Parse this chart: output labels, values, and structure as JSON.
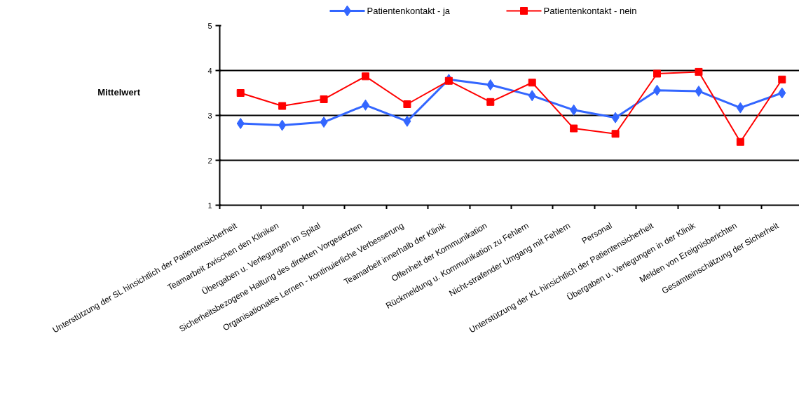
{
  "chart_data": {
    "type": "line",
    "ylabel": "Mittelwert",
    "categories": [
      "Unterstützung der SL hinsichtlich der Patientensicherheit",
      "Teamarbeit zwischen den Kliniken",
      "Übergaben u. Verlegungen im Spital",
      "Sicherheitsbezogene Haltung des direkten Vorgesetzten",
      "Organisationales Lernen - kontinuierliche Verbesserung",
      "Teamarbeit innerhalb der Klinik",
      "Offenheit der Kommunikation",
      "Rückmeldung u. Kommunikation zu Fehlern",
      "Nicht-strafender Umgang mit Fehlern",
      "Personal",
      "Unterstützung der KL hinsichtlich der Patientensicherheit",
      "Übergaben u. Verlegungen in der Klinik",
      "Melden von Ereignisberichten",
      "Gesamteinschätzung der Sicherheit"
    ],
    "series": [
      {
        "name": "Patientenkontakt - ja",
        "color": "#3366ff",
        "marker": "diamond",
        "values": [
          2.82,
          2.78,
          2.85,
          3.23,
          2.87,
          3.8,
          3.68,
          3.44,
          3.12,
          2.95,
          3.56,
          3.54,
          3.17,
          3.5
        ]
      },
      {
        "name": "Patientenkontakt - nein",
        "color": "#ff0000",
        "marker": "square",
        "values": [
          3.5,
          3.21,
          3.36,
          3.87,
          3.25,
          3.77,
          3.3,
          3.73,
          2.71,
          2.59,
          3.93,
          3.97,
          2.41,
          3.8
        ]
      }
    ],
    "ylim": [
      1,
      5
    ],
    "yticks": [
      1,
      2,
      3,
      4,
      5
    ],
    "grid": "y",
    "legend": "top"
  }
}
